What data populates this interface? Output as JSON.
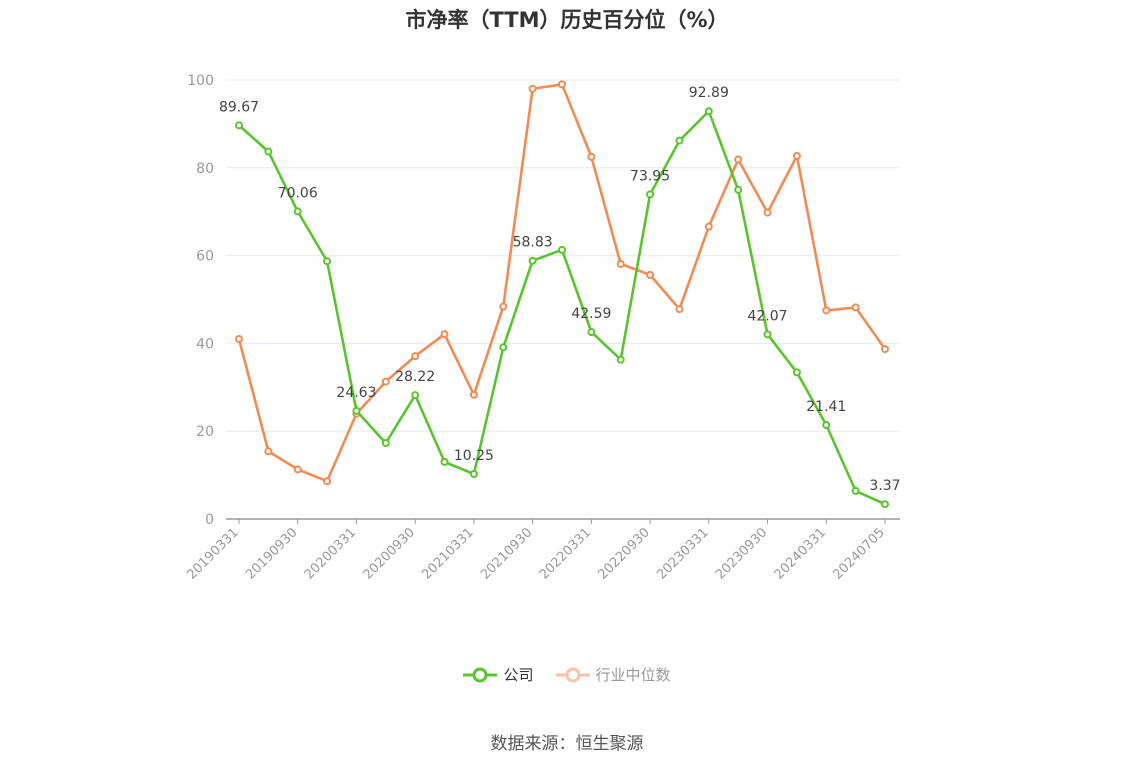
{
  "title": "市净率（TTM）历史百分位（%）",
  "source": "数据来源：恒生聚源",
  "chart_data": {
    "type": "line",
    "title": "市净率（TTM）历史百分位（%）",
    "ylim": [
      0,
      100
    ],
    "yticks": [
      0,
      20,
      40,
      60,
      80,
      100
    ],
    "x": [
      "20190331",
      "20190630",
      "20190930",
      "20191231",
      "20200331",
      "20200630",
      "20200930",
      "20201231",
      "20210331",
      "20210630",
      "20210930",
      "20211231",
      "20220331",
      "20220630",
      "20220930",
      "20221231",
      "20230331",
      "20230630",
      "20230930",
      "20231231",
      "20240331",
      "20240630",
      "20240705"
    ],
    "xticklabels": [
      "20190331",
      "20190930",
      "20200331",
      "20200930",
      "20210331",
      "20210930",
      "20220331",
      "20220930",
      "20230331",
      "20230930",
      "20240331",
      "20240705"
    ],
    "grid": true,
    "legend_position": "bottom",
    "series": [
      {
        "name": "公司",
        "color": "#5ac42e",
        "values": [
          89.67,
          83.7,
          70.06,
          58.7,
          24.63,
          17.3,
          28.22,
          13.0,
          10.25,
          39.1,
          58.83,
          61.3,
          42.59,
          36.3,
          73.95,
          86.2,
          92.89,
          75.0,
          42.07,
          33.4,
          21.41,
          6.4,
          3.37
        ],
        "data_labels": [
          "89.67",
          null,
          "70.06",
          null,
          "24.63",
          null,
          "28.22",
          null,
          "10.25",
          null,
          "58.83",
          null,
          "42.59",
          null,
          "73.95",
          null,
          "92.89",
          null,
          "42.07",
          null,
          "21.41",
          null,
          "3.37"
        ]
      },
      {
        "name": "行业中位数",
        "color": "#f08b54",
        "values": [
          41.0,
          15.4,
          11.3,
          8.6,
          24.0,
          31.3,
          37.1,
          42.1,
          28.3,
          48.4,
          98.0,
          99.0,
          82.5,
          58.1,
          55.6,
          47.8,
          66.6,
          81.9,
          69.8,
          82.7,
          47.5,
          48.2,
          38.7
        ]
      }
    ]
  }
}
